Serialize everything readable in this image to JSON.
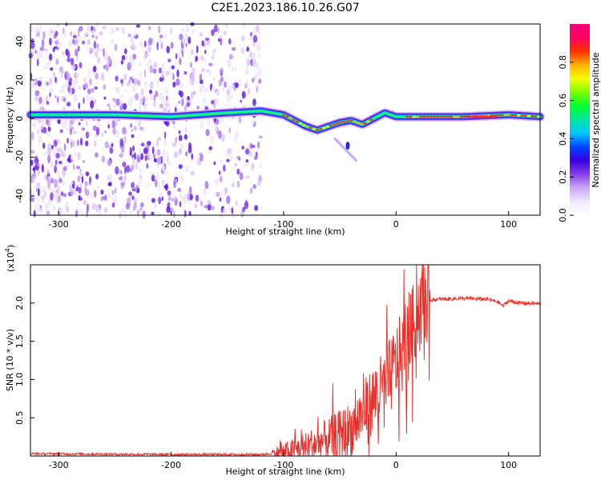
{
  "title": "C2E1.2023.186.10.26.G07",
  "chart_data": [
    {
      "type": "heatmap",
      "xlabel": "Height of straight line (km)",
      "ylabel": "Frequency (Hz)",
      "xlim": [
        -325,
        128
      ],
      "ylim": [
        -50,
        49
      ],
      "xticks": [
        -300,
        -200,
        -100,
        0,
        100
      ],
      "yticks": [
        -40,
        -20,
        0,
        20,
        40
      ],
      "colorbar": {
        "label": "Normalized spectral amplitude",
        "range": [
          0.0,
          1.0
        ],
        "ticks": [
          0.0,
          0.2,
          0.4,
          0.6,
          0.8
        ],
        "colors": [
          "#ffffff",
          "#f0e6ff",
          "#c9a8f5",
          "#8a3fe8",
          "#3a00e0",
          "#0044ff",
          "#00c8ff",
          "#00e8a0",
          "#00ff30",
          "#7dff00",
          "#f5ff00",
          "#ffb000",
          "#ff3000",
          "#ff0060",
          "#f0007a"
        ]
      },
      "ridge": {
        "x": [
          -325,
          -250,
          -200,
          -150,
          -120,
          -100,
          -90,
          -80,
          -70,
          -60,
          -50,
          -40,
          -30,
          -20,
          -10,
          0,
          20,
          60,
          100,
          128
        ],
        "y": [
          2,
          2,
          1,
          3,
          4,
          2,
          -1,
          -4,
          -6,
          -4,
          -2,
          -1,
          -3,
          0,
          3,
          1,
          1,
          1,
          2,
          1
        ]
      },
      "scatter_extent_x": [
        -325,
        -120
      ],
      "tail": {
        "x": [
          -55,
          -35
        ],
        "y": [
          -10,
          -22
        ]
      }
    },
    {
      "type": "line",
      "xlabel": "Height of straight line (km)",
      "ylabel": "SNR (10 * v/v)",
      "scale_label": "(x10",
      "scale_exp": "4",
      "xlim": [
        -325,
        128
      ],
      "ylim": [
        0.0,
        2.5
      ],
      "xticks": [
        -300,
        -200,
        -100,
        0,
        100
      ],
      "yticks": [
        0.5,
        1.0,
        1.5,
        2.0
      ],
      "series": [
        {
          "color": "#e8302a",
          "x": [
            -325,
            -200,
            -120,
            -100,
            -80,
            -60,
            -40,
            -30,
            -20,
            -10,
            0,
            10,
            15,
            20,
            30,
            40,
            60,
            80,
            90,
            95,
            100,
            110,
            128
          ],
          "y": [
            0.03,
            0.02,
            0.02,
            0.05,
            0.12,
            0.22,
            0.35,
            0.55,
            0.75,
            0.9,
            1.2,
            1.45,
            1.7,
            1.95,
            2.04,
            2.05,
            2.06,
            2.05,
            2.02,
            1.96,
            2.03,
            2.0,
            1.99
          ]
        }
      ]
    }
  ]
}
